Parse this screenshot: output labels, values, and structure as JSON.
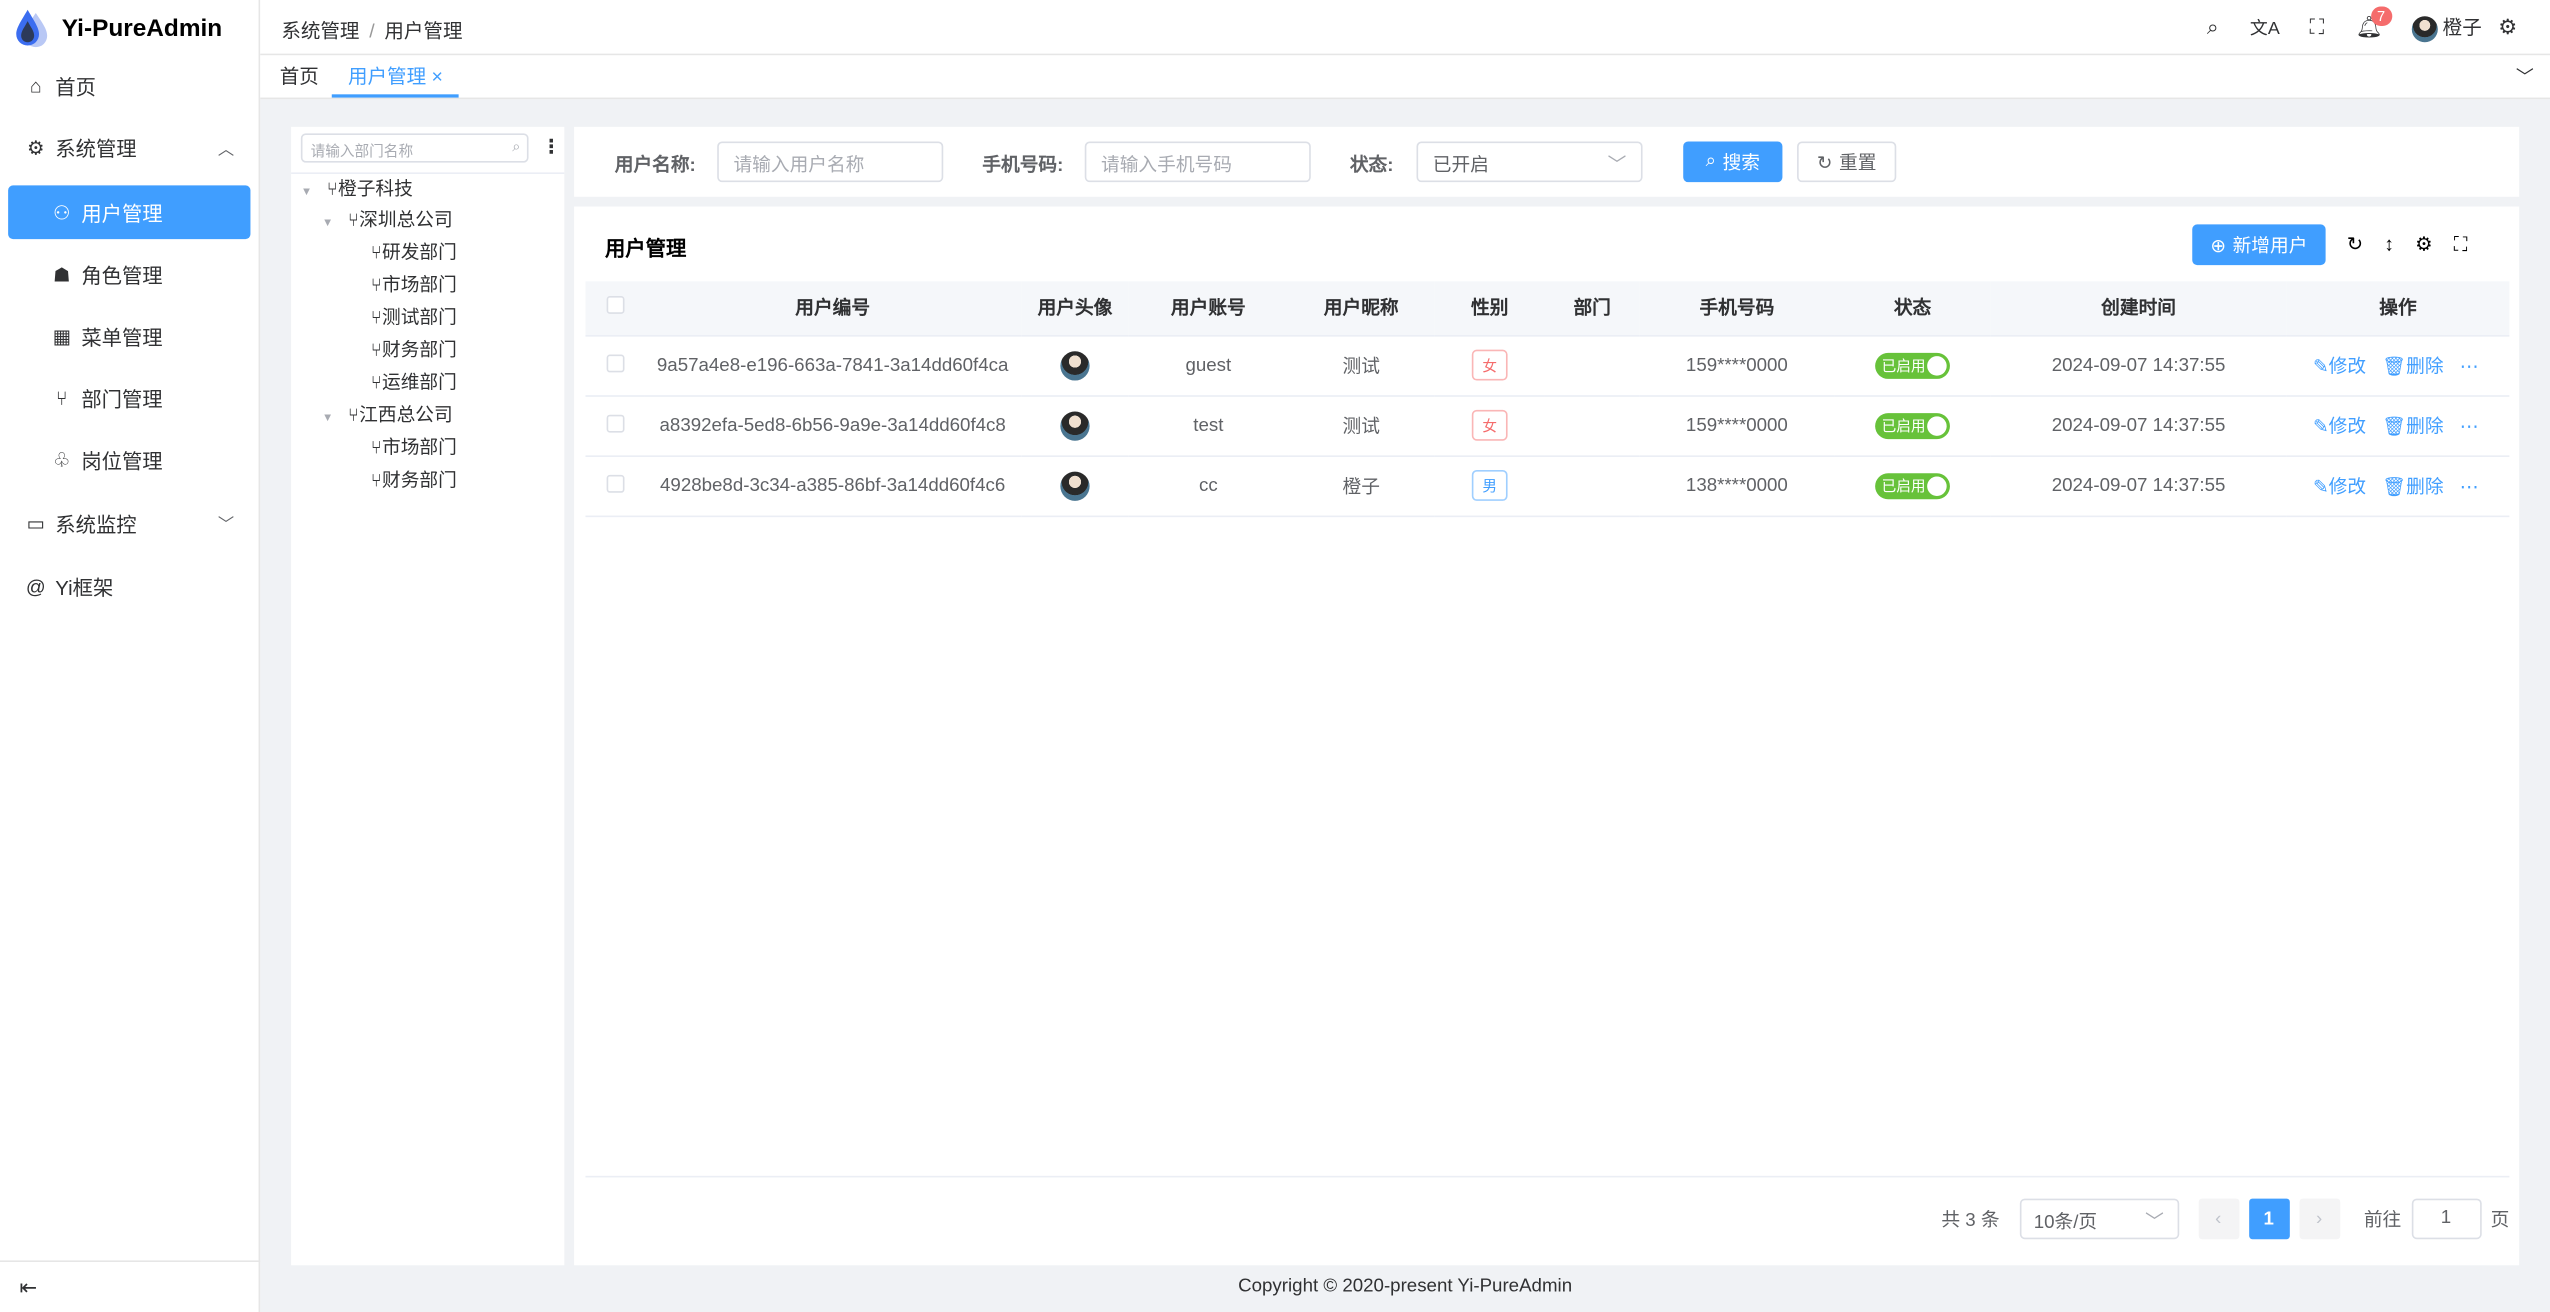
{
  "app": {
    "title": "Yi-PureAdmin"
  },
  "sidebar": {
    "items": [
      {
        "label": "首页",
        "icon": "home-icon"
      },
      {
        "label": "系统管理",
        "icon": "gear-icon",
        "expanded": true
      },
      {
        "label": "用户管理",
        "icon": "user-icon",
        "active": true
      },
      {
        "label": "角色管理",
        "icon": "role-icon"
      },
      {
        "label": "菜单管理",
        "icon": "menu-grid-icon"
      },
      {
        "label": "部门管理",
        "icon": "branch-icon"
      },
      {
        "label": "岗位管理",
        "icon": "position-icon"
      },
      {
        "label": "系统监控",
        "icon": "monitor-icon"
      },
      {
        "label": "Yi框架",
        "icon": "at-icon"
      }
    ]
  },
  "header": {
    "breadcrumb": [
      "系统管理",
      "用户管理"
    ],
    "notification_count": "7",
    "username": "橙子"
  },
  "tabs": [
    {
      "label": "首页"
    },
    {
      "label": "用户管理",
      "active": true
    }
  ],
  "tree": {
    "placeholder": "请输入部门名称",
    "nodes": [
      "橙子科技",
      "深圳总公司",
      "研发部门",
      "市场部门",
      "测试部门",
      "财务部门",
      "运维部门",
      "江西总公司",
      "市场部门",
      "财务部门"
    ]
  },
  "form": {
    "username_label": "用户名称:",
    "username_placeholder": "请输入用户名称",
    "phone_label": "手机号码:",
    "phone_placeholder": "请输入手机号码",
    "status_label": "状态:",
    "status_value": "已开启",
    "search": "搜索",
    "reset": "重置"
  },
  "table": {
    "title": "用户管理",
    "add": "新增用户",
    "columns": [
      "用户编号",
      "用户头像",
      "用户账号",
      "用户昵称",
      "性别",
      "部门",
      "手机号码",
      "状态",
      "创建时间",
      "操作"
    ],
    "rows": [
      {
        "id": "9a57a4e8-e196-663a-7841-3a14dd60f4ca",
        "account": "guest",
        "nickname": "测试",
        "gender": "女",
        "dept": "",
        "phone": "159****0000",
        "status": "已启用",
        "created": "2024-09-07 14:37:55"
      },
      {
        "id": "a8392efa-5ed8-6b56-9a9e-3a14dd60f4c8",
        "account": "test",
        "nickname": "测试",
        "gender": "女",
        "dept": "",
        "phone": "159****0000",
        "status": "已启用",
        "created": "2024-09-07 14:37:55"
      },
      {
        "id": "4928be8d-3c34-a385-86bf-3a14dd60f4c6",
        "account": "cc",
        "nickname": "橙子",
        "gender": "男",
        "dept": "",
        "phone": "138****0000",
        "status": "已启用",
        "created": "2024-09-07 14:37:55"
      }
    ],
    "edit": "修改",
    "delete": "删除"
  },
  "pagination": {
    "total": "共 3 条",
    "page_size": "10条/页",
    "current": "1",
    "goto_label": "前往",
    "goto_value": "1",
    "page_suffix": "页"
  },
  "footer": "Copyright © 2020-present Yi-PureAdmin",
  "colors": {
    "primary": "#409eff",
    "success": "#67c23a",
    "danger": "#f56c6c"
  }
}
